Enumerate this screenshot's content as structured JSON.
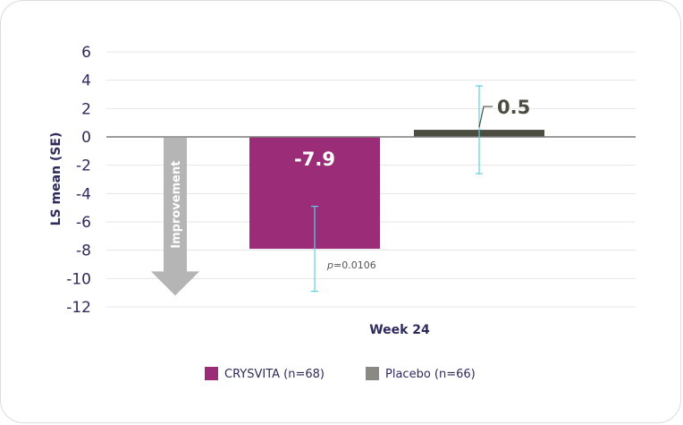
{
  "chart_data": {
    "type": "bar",
    "title": "",
    "xlabel": "Week 24",
    "ylabel": "LS mean (SE)",
    "ylim": [
      -12,
      6
    ],
    "yticks": [
      6,
      4,
      2,
      0,
      -2,
      -4,
      -6,
      -8,
      -10,
      -12
    ],
    "grid": true,
    "legend_position": "bottom",
    "series": [
      {
        "name": "CRYSVITA (n=68)",
        "value": -7.9,
        "error_low": -10.9,
        "error_high": -4.9,
        "label": "-7.9",
        "color": "#9b2c77",
        "label_color": "#ffffff",
        "annotation": "p=0.0106",
        "annotation_prefix": "p",
        "annotation_value": "=0.0106"
      },
      {
        "name": "Placebo (n=66)",
        "value": 0.5,
        "error_low": -2.6,
        "error_high": 3.6,
        "label": "0.5",
        "color": "#4b4d41",
        "label_color": "#4b4d41"
      }
    ],
    "legend": [
      {
        "label": "CRYSVITA (n=68)",
        "color": "#9b2c77"
      },
      {
        "label": "Placebo (n=66)",
        "color": "#8a8a82"
      }
    ],
    "improvement_arrow": {
      "label": "Improvement",
      "from": 0,
      "to": -11.2,
      "color": "#b5b5b5"
    },
    "colors": {
      "axis_text": "#2d2a5c",
      "grid": "#e4e4e4",
      "zero_line": "#7a7a7a",
      "error_bar": "#5ed0e6"
    }
  }
}
